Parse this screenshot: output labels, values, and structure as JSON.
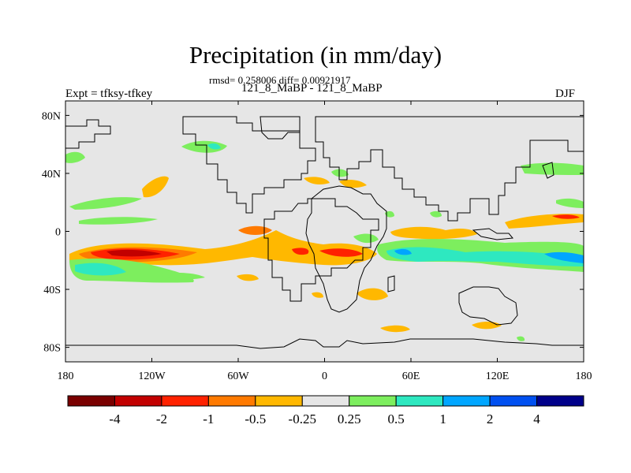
{
  "title": "Precipitation (in mm/day)",
  "stats": "rmsd= 0.258006 diff= 0.00921917",
  "subtitle": "121_8_MaBP - 121_8_MaBP",
  "left_label": "Expt = tfksy-tfkey",
  "right_label": "DJF",
  "map": {
    "lat_ticks": [
      {
        "value": 80,
        "label": "80N"
      },
      {
        "value": 40,
        "label": "40N"
      },
      {
        "value": 0,
        "label": "0"
      },
      {
        "value": -40,
        "label": "40S"
      },
      {
        "value": -80,
        "label": "80S"
      }
    ],
    "lon_ticks": [
      {
        "value": -180,
        "label": "180"
      },
      {
        "value": -120,
        "label": "120W"
      },
      {
        "value": -60,
        "label": "60W"
      },
      {
        "value": 0,
        "label": "0"
      },
      {
        "value": 60,
        "label": "60E"
      },
      {
        "value": 120,
        "label": "120E"
      },
      {
        "value": 180,
        "label": "180"
      }
    ],
    "background_color": "#e6e6e6"
  },
  "colorbar": {
    "colors": [
      "#7a0000",
      "#c20000",
      "#ff2200",
      "#ff7a00",
      "#ffb800",
      "#e6e6e6",
      "#7dee5e",
      "#2ee8c0",
      "#00a6ff",
      "#0050f0",
      "#00008a"
    ],
    "labels": [
      "-4",
      "-2",
      "-1",
      "-0.5",
      "-0.25",
      "0.25",
      "0.5",
      "1",
      "2",
      "4"
    ]
  }
}
